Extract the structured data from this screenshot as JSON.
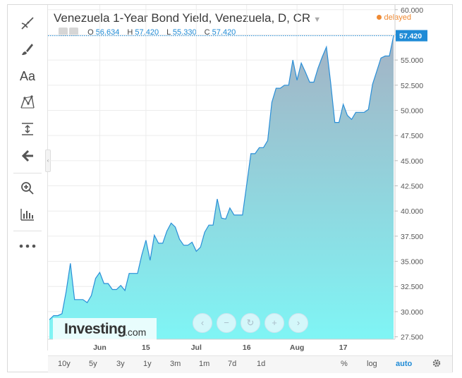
{
  "header": {
    "title": "Venezuela 1-Year Bond Yield, Venezuela, D, CR",
    "status": "delayed",
    "ohlc": [
      {
        "key": "O",
        "value": "56.634"
      },
      {
        "key": "H",
        "value": "57.420"
      },
      {
        "key": "L",
        "value": "55.330"
      },
      {
        "key": "C",
        "value": "57.420"
      }
    ]
  },
  "toolbar": {
    "text_tool_label": "Aa",
    "icons": [
      "trend-line-icon",
      "brush-icon",
      "text-icon",
      "pattern-icon",
      "measure-icon",
      "arrow-left-icon",
      "zoom-icon",
      "indicators-icon",
      "more-icon"
    ]
  },
  "range_buttons": [
    "10y",
    "5y",
    "3y",
    "1y",
    "3m",
    "1m",
    "7d",
    "1d"
  ],
  "scale_buttons": {
    "percent": "%",
    "log": "log",
    "auto": "auto"
  },
  "nav_buttons": {
    "prev": "‹",
    "zoom_out": "−",
    "reset": "↻",
    "zoom_in": "+",
    "next": "›"
  },
  "logo": {
    "main": "Investing",
    "suffix": ".com"
  },
  "colors": {
    "line": "#2a8fd8",
    "fill_top": "#a4b2c4",
    "fill_bottom": "#7ff5f5",
    "accent": "#1f8bd6",
    "status": "#ef8a33"
  },
  "chart_data": {
    "type": "area",
    "series": [
      {
        "values": [
          29.2,
          29.6,
          29.6,
          29.8,
          32.0,
          34.8,
          31.2,
          31.2,
          31.2,
          30.9,
          31.6,
          33.3,
          33.9,
          32.8,
          32.8,
          32.2,
          32.2,
          32.6,
          32.1,
          33.8,
          33.8,
          33.8,
          35.6,
          37.1,
          35.1,
          37.6,
          36.8,
          36.8,
          38.0,
          38.8,
          38.4,
          37.2,
          36.6,
          36.6,
          36.9,
          36.0,
          36.4,
          37.9,
          38.6,
          38.6,
          41.2,
          39.3,
          39.2,
          40.3,
          39.6,
          39.6,
          39.6,
          42.6,
          45.7,
          45.7,
          46.3,
          46.3,
          47.0,
          50.8,
          52.2,
          52.2,
          52.5,
          52.5,
          55.0,
          53.0,
          54.7,
          53.8,
          52.8,
          52.8,
          54.2,
          55.3,
          56.3,
          52.8,
          48.8,
          48.8,
          50.6,
          49.5,
          49.1,
          49.8,
          49.8,
          49.8,
          50.1,
          52.6,
          53.9,
          55.2,
          55.4,
          55.4,
          57.4
        ]
      }
    ],
    "x_labels": [
      {
        "label": "Jun",
        "index": 12
      },
      {
        "label": "15",
        "index": 23
      },
      {
        "label": "Jul",
        "index": 35
      },
      {
        "label": "16",
        "index": 47
      },
      {
        "label": "Aug",
        "index": 59
      },
      {
        "label": "17",
        "index": 70
      }
    ],
    "y_ticks": [
      "27.500",
      "30.000",
      "32.500",
      "35.000",
      "37.500",
      "40.000",
      "42.500",
      "45.000",
      "47.500",
      "50.000",
      "52.500",
      "55.000",
      "57.500",
      "60.000"
    ],
    "ylim": [
      26,
      60.3
    ],
    "last_value": "57.420",
    "grid": true
  }
}
